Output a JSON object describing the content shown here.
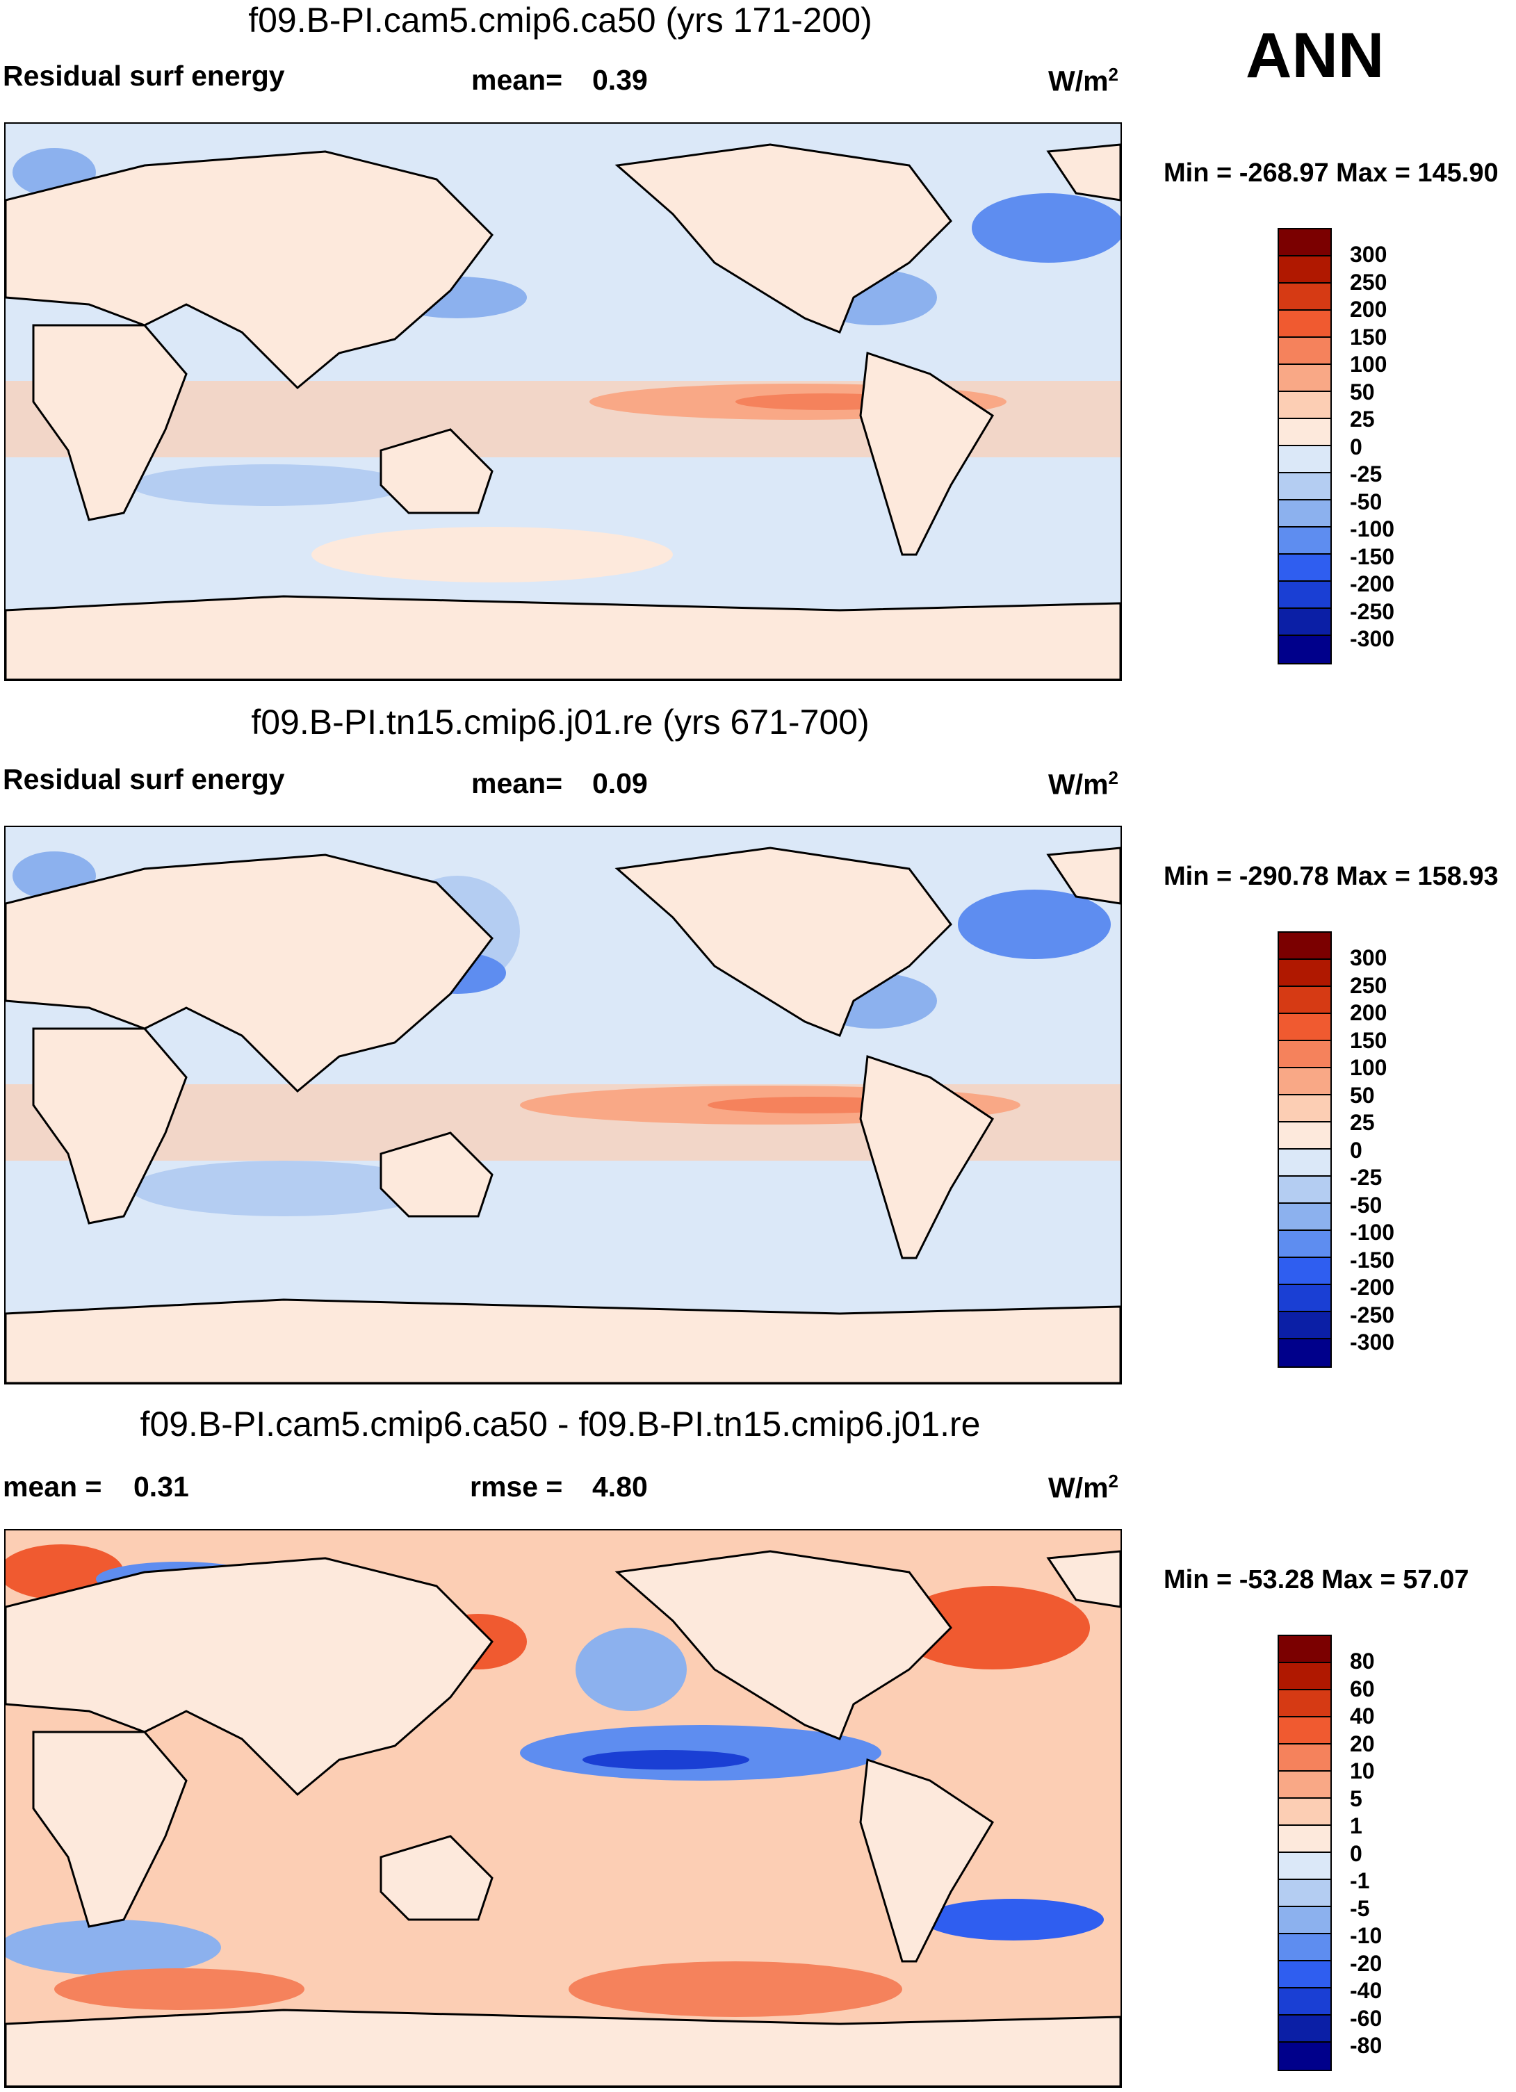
{
  "season": "ANN",
  "units_base": "W/m",
  "units_exp": "2",
  "panels": [
    {
      "title": "f09.B-PI.cam5.cmip6.ca50 (yrs 171-200)",
      "left_label": "Residual surf energy",
      "stat_label": "mean=",
      "stat_value": "0.39",
      "min_max": "Min = -268.97 Max = 145.90"
    },
    {
      "title": "f09.B-PI.tn15.cmip6.j01.re (yrs 671-700)",
      "left_label": "Residual surf energy",
      "stat_label": "mean=",
      "stat_value": "0.09",
      "min_max": "Min = -290.78 Max = 158.93"
    },
    {
      "title": "f09.B-PI.cam5.cmip6.ca50 - f09.B-PI.tn15.cmip6.j01.re",
      "left_label": "mean =",
      "left_value": "0.31",
      "stat_label": "rmse =",
      "stat_value": "4.80",
      "min_max": "Min = -53.28 Max =  57.07"
    }
  ],
  "chart_data": [
    {
      "type": "heatmap",
      "title": "f09.B-PI.cam5.cmip6.ca50 (yrs 171-200)",
      "variable": "Residual surf energy",
      "mean": 0.39,
      "min": -268.97,
      "max": 145.9,
      "units": "W/m2",
      "colorbar_levels": [
        "300",
        "250",
        "200",
        "150",
        "100",
        "50",
        "25",
        "0",
        "-25",
        "-50",
        "-100",
        "-150",
        "-200",
        "-250",
        "-300"
      ]
    },
    {
      "type": "heatmap",
      "title": "f09.B-PI.tn15.cmip6.j01.re (yrs 671-700)",
      "variable": "Residual surf energy",
      "mean": 0.09,
      "min": -290.78,
      "max": 158.93,
      "units": "W/m2",
      "colorbar_levels": [
        "300",
        "250",
        "200",
        "150",
        "100",
        "50",
        "25",
        "0",
        "-25",
        "-50",
        "-100",
        "-150",
        "-200",
        "-250",
        "-300"
      ]
    },
    {
      "type": "heatmap",
      "title": "f09.B-PI.cam5.cmip6.ca50 - f09.B-PI.tn15.cmip6.j01.re",
      "mean": 0.31,
      "rmse": 4.8,
      "min": -53.28,
      "max": 57.07,
      "units": "W/m2",
      "colorbar_levels": [
        "80",
        "60",
        "40",
        "20",
        "10",
        "5",
        "1",
        "0",
        "-1",
        "-5",
        "-10",
        "-20",
        "-40",
        "-60",
        "-80"
      ]
    }
  ],
  "colors": {
    "scale": [
      "#7b0000",
      "#b01800",
      "#d63a14",
      "#f05a30",
      "#f5825c",
      "#f9a886",
      "#fcceb4",
      "#fde9dc",
      "#dbe8f8",
      "#b4cdf2",
      "#8cb1ee",
      "#5e8df0",
      "#2f5ef0",
      "#1a3fd4",
      "#0b1fa6",
      "#00008b"
    ],
    "land": "#fde9dc",
    "ocean": "#dbe8f8"
  }
}
